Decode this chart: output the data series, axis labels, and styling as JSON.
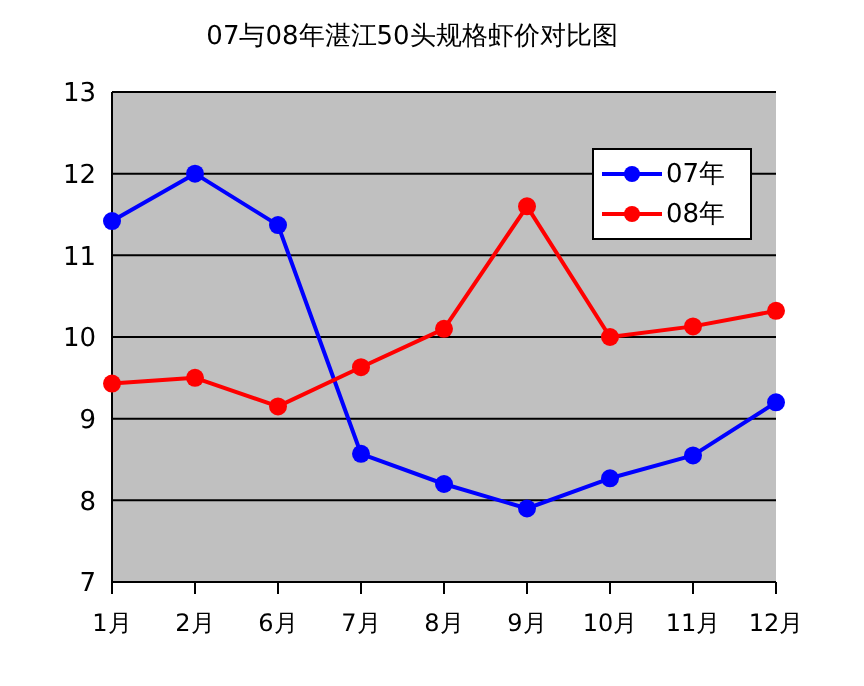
{
  "chart_data": {
    "type": "line",
    "title": "07与08年湛江50头规格虾价对比图",
    "categories": [
      "1月",
      "2月",
      "6月",
      "7月",
      "8月",
      "9月",
      "10月",
      "11月",
      "12月"
    ],
    "series": [
      {
        "name": "07年",
        "color": "#0000ff",
        "values": [
          11.42,
          12.0,
          11.37,
          8.57,
          8.2,
          7.9,
          8.27,
          8.55,
          9.2
        ]
      },
      {
        "name": "08年",
        "color": "#ff0000",
        "values": [
          9.43,
          9.5,
          9.15,
          9.63,
          10.1,
          11.6,
          10.0,
          10.13,
          10.32
        ]
      }
    ],
    "ylim": [
      7,
      13
    ],
    "yticks": [
      7,
      8,
      9,
      10,
      11,
      12,
      13
    ],
    "grid": "y",
    "legend": "top right",
    "marker": "circle",
    "line_style": "solid"
  }
}
